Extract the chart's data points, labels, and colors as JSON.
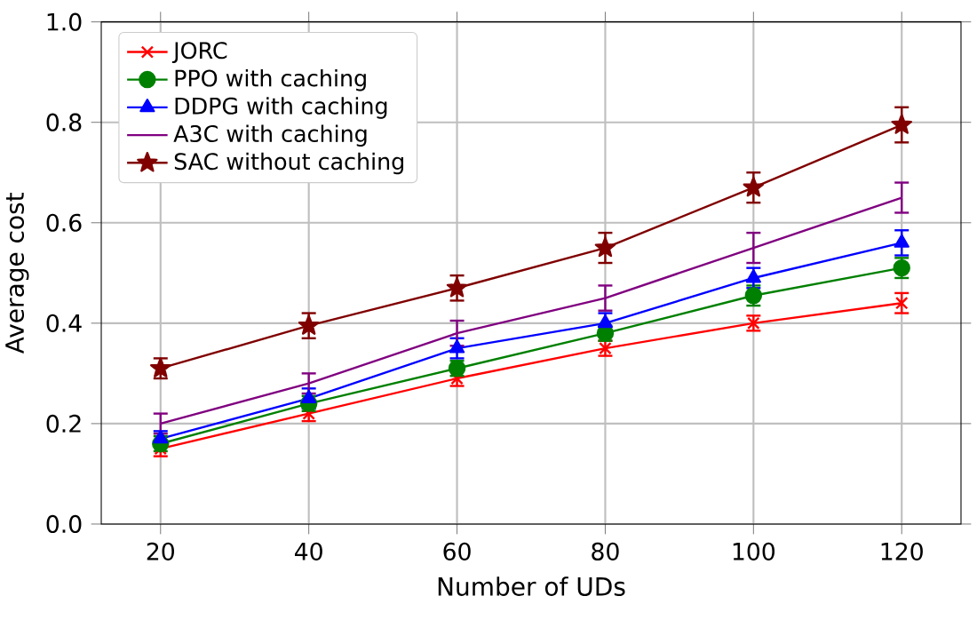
{
  "chart_data": {
    "type": "line",
    "xlabel": "Number of UDs",
    "ylabel": "Average cost",
    "x": [
      20,
      40,
      60,
      80,
      100,
      120
    ],
    "xlim": [
      12,
      128
    ],
    "ylim": [
      0,
      1
    ],
    "xticks": [
      20,
      40,
      60,
      80,
      100,
      120
    ],
    "yticks": [
      {
        "value": 0,
        "label": "0.0"
      },
      {
        "value": 0.2,
        "label": "0.2"
      },
      {
        "value": 0.4,
        "label": "0.4"
      },
      {
        "value": 0.6,
        "label": "0.6"
      },
      {
        "value": 0.8,
        "label": "0.8"
      },
      {
        "value": 1,
        "label": "1.0"
      }
    ],
    "grid": true,
    "legend": "top left",
    "series": [
      {
        "name": "JORC",
        "color": "#ff0000",
        "marker": "cross",
        "values": [
          0.15,
          0.22,
          0.29,
          0.35,
          0.4,
          0.44
        ],
        "errors": [
          0.015,
          0.015,
          0.015,
          0.015,
          0.015,
          0.02
        ]
      },
      {
        "name": "PPO with caching",
        "color": "#008000",
        "marker": "circle",
        "values": [
          0.16,
          0.24,
          0.31,
          0.38,
          0.455,
          0.51
        ],
        "errors": [
          0.015,
          0.015,
          0.015,
          0.015,
          0.02,
          0.02
        ]
      },
      {
        "name": "DDPG with caching",
        "color": "#0000ff",
        "marker": "triangle",
        "values": [
          0.17,
          0.25,
          0.35,
          0.4,
          0.49,
          0.56
        ],
        "errors": [
          0.015,
          0.02,
          0.02,
          0.02,
          0.02,
          0.025
        ]
      },
      {
        "name": "A3C with caching",
        "color": "#800080",
        "marker": "none",
        "values": [
          0.2,
          0.28,
          0.38,
          0.45,
          0.55,
          0.65
        ],
        "errors": [
          0.02,
          0.02,
          0.025,
          0.025,
          0.03,
          0.03
        ]
      },
      {
        "name": "SAC without caching",
        "color": "#800000",
        "marker": "star",
        "values": [
          0.31,
          0.395,
          0.47,
          0.55,
          0.67,
          0.795
        ],
        "errors": [
          0.02,
          0.025,
          0.025,
          0.03,
          0.03,
          0.035
        ]
      }
    ]
  }
}
